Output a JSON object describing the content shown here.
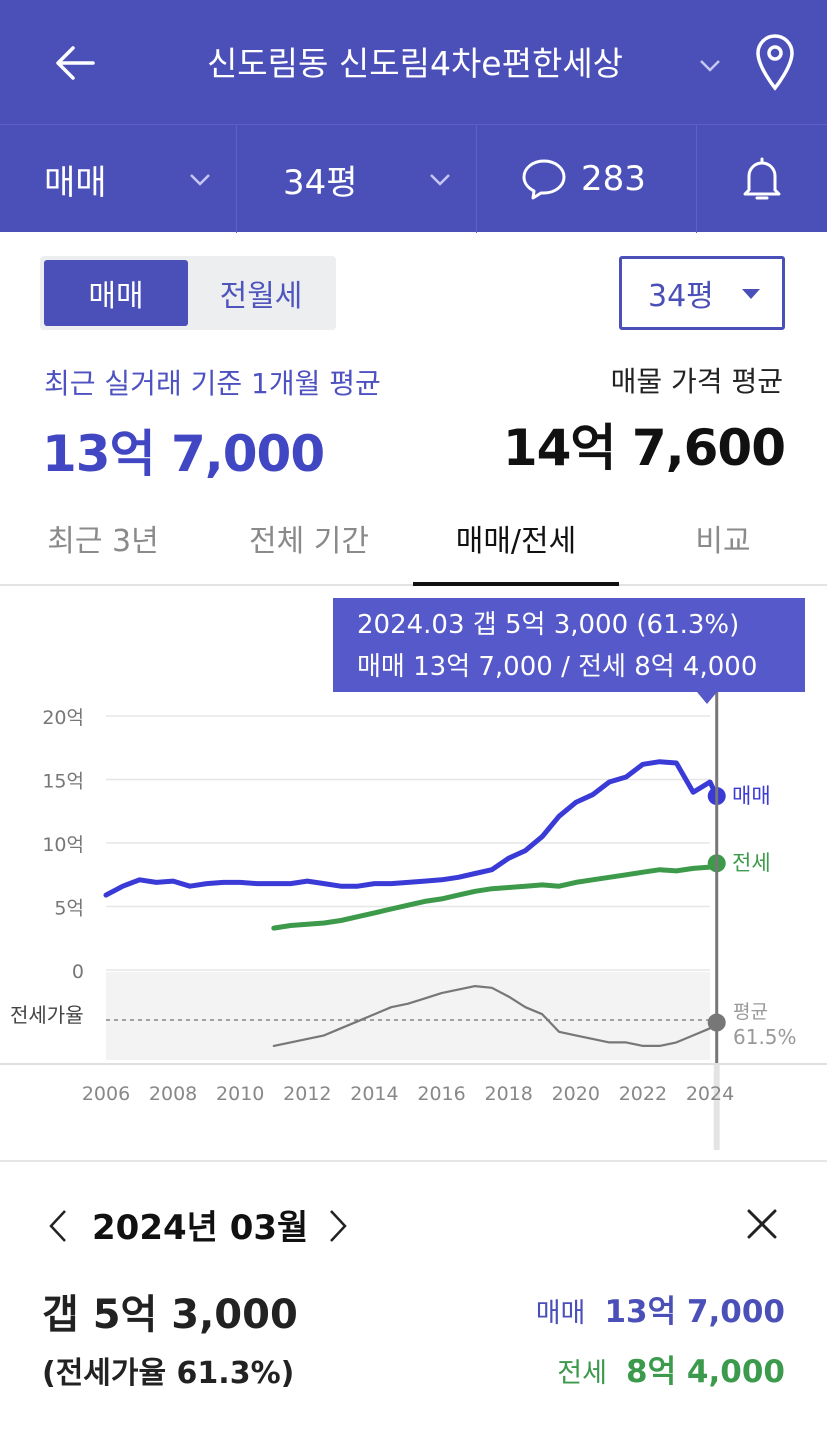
{
  "header": {
    "title": "신도림동 신도림4차e편한세상",
    "filter_deal": "매매",
    "filter_size": "34평",
    "comment_count": "283"
  },
  "toggle": {
    "sale": "매매",
    "rent": "전월세"
  },
  "size_select": "34평",
  "summary": {
    "recent_label": "최근 실거래 기준 1개월 평균",
    "recent_value": "13억 7,000",
    "listing_label": "매물 가격 평균",
    "listing_value": "14억 7,600"
  },
  "tabs": [
    "최근 3년",
    "전체 기간",
    "매매/전세",
    "비교"
  ],
  "active_tab": 2,
  "tooltip": {
    "line1": "2024.03  갭 5억 3,000 (61.3%)",
    "line2": "매매 13억 7,000 / 전세 8억 4,000"
  },
  "colors": {
    "primary": "#4b4fb8",
    "sale": "#3a3ad6",
    "rent": "#3d9a4b",
    "ratio": "#777777"
  },
  "chart_data": {
    "type": "line",
    "ylabel_ticks": [
      "20억",
      "15억",
      "10억",
      "5억",
      "0"
    ],
    "y_tick_values": [
      20,
      15,
      10,
      5,
      0
    ],
    "x_ticks": [
      "2006",
      "2008",
      "2010",
      "2012",
      "2014",
      "2016",
      "2018",
      "2020",
      "2022",
      "2024"
    ],
    "x_tick_values": [
      2006,
      2008,
      2010,
      2012,
      2014,
      2016,
      2018,
      2020,
      2022,
      2024
    ],
    "xlim": [
      2006,
      2024
    ],
    "ylim": [
      0,
      20
    ],
    "ratio_label": "전세가율",
    "ratio_avg_label": "평균",
    "ratio_avg_value": "61.5%",
    "series": [
      {
        "name": "매매",
        "x": [
          2006.0,
          2006.5,
          2007.0,
          2007.5,
          2008.0,
          2008.5,
          2009.0,
          2009.5,
          2010.0,
          2010.5,
          2011.0,
          2011.5,
          2012.0,
          2012.5,
          2013.0,
          2013.5,
          2014.0,
          2014.5,
          2015.0,
          2015.5,
          2016.0,
          2016.5,
          2017.0,
          2017.5,
          2018.0,
          2018.5,
          2019.0,
          2019.5,
          2020.0,
          2020.5,
          2021.0,
          2021.5,
          2022.0,
          2022.5,
          2023.0,
          2023.5,
          2024.0,
          2024.2
        ],
        "values": [
          5.9,
          6.6,
          7.1,
          6.9,
          7.0,
          6.6,
          6.8,
          6.9,
          6.9,
          6.8,
          6.8,
          6.8,
          7.0,
          6.8,
          6.6,
          6.6,
          6.8,
          6.8,
          6.9,
          7.0,
          7.1,
          7.3,
          7.6,
          7.9,
          8.8,
          9.4,
          10.5,
          12.1,
          13.2,
          13.8,
          14.8,
          15.2,
          16.2,
          16.4,
          16.3,
          14.0,
          14.8,
          13.7
        ]
      },
      {
        "name": "전세",
        "x": [
          2011.0,
          2011.5,
          2012.0,
          2012.5,
          2013.0,
          2013.5,
          2014.0,
          2014.5,
          2015.0,
          2015.5,
          2016.0,
          2016.5,
          2017.0,
          2017.5,
          2018.0,
          2018.5,
          2019.0,
          2019.5,
          2020.0,
          2020.5,
          2021.0,
          2021.5,
          2022.0,
          2022.5,
          2023.0,
          2023.5,
          2024.0,
          2024.2
        ],
        "values": [
          3.3,
          3.5,
          3.6,
          3.7,
          3.9,
          4.2,
          4.5,
          4.8,
          5.1,
          5.4,
          5.6,
          5.9,
          6.2,
          6.4,
          6.5,
          6.6,
          6.7,
          6.6,
          6.9,
          7.1,
          7.3,
          7.5,
          7.7,
          7.9,
          7.8,
          8.0,
          8.1,
          8.4
        ]
      },
      {
        "name": "전세가율",
        "x": [
          2011.0,
          2011.5,
          2012.0,
          2012.5,
          2013.0,
          2013.5,
          2014.0,
          2014.5,
          2015.0,
          2015.5,
          2016.0,
          2016.5,
          2017.0,
          2017.5,
          2018.0,
          2018.5,
          2019.0,
          2019.5,
          2020.0,
          2020.5,
          2021.0,
          2021.5,
          2022.0,
          2022.5,
          2023.0,
          2023.5,
          2024.0,
          2024.2
        ],
        "values": [
          48,
          50,
          52,
          54,
          58,
          62,
          66,
          70,
          72,
          75,
          78,
          80,
          82,
          81,
          76,
          70,
          66,
          56,
          54,
          52,
          50,
          50,
          48,
          48,
          50,
          54,
          58,
          61.3
        ]
      }
    ],
    "highlight": {
      "x": 2024.2,
      "label": "2024.03"
    }
  },
  "detail": {
    "month": "2024년 03월",
    "gap": "갭 5억 3,000",
    "ratio": "(전세가율 61.3%)",
    "sale_label": "매매",
    "sale_value": "13억 7,000",
    "rent_label": "전세",
    "rent_value": "8억 4,000"
  }
}
